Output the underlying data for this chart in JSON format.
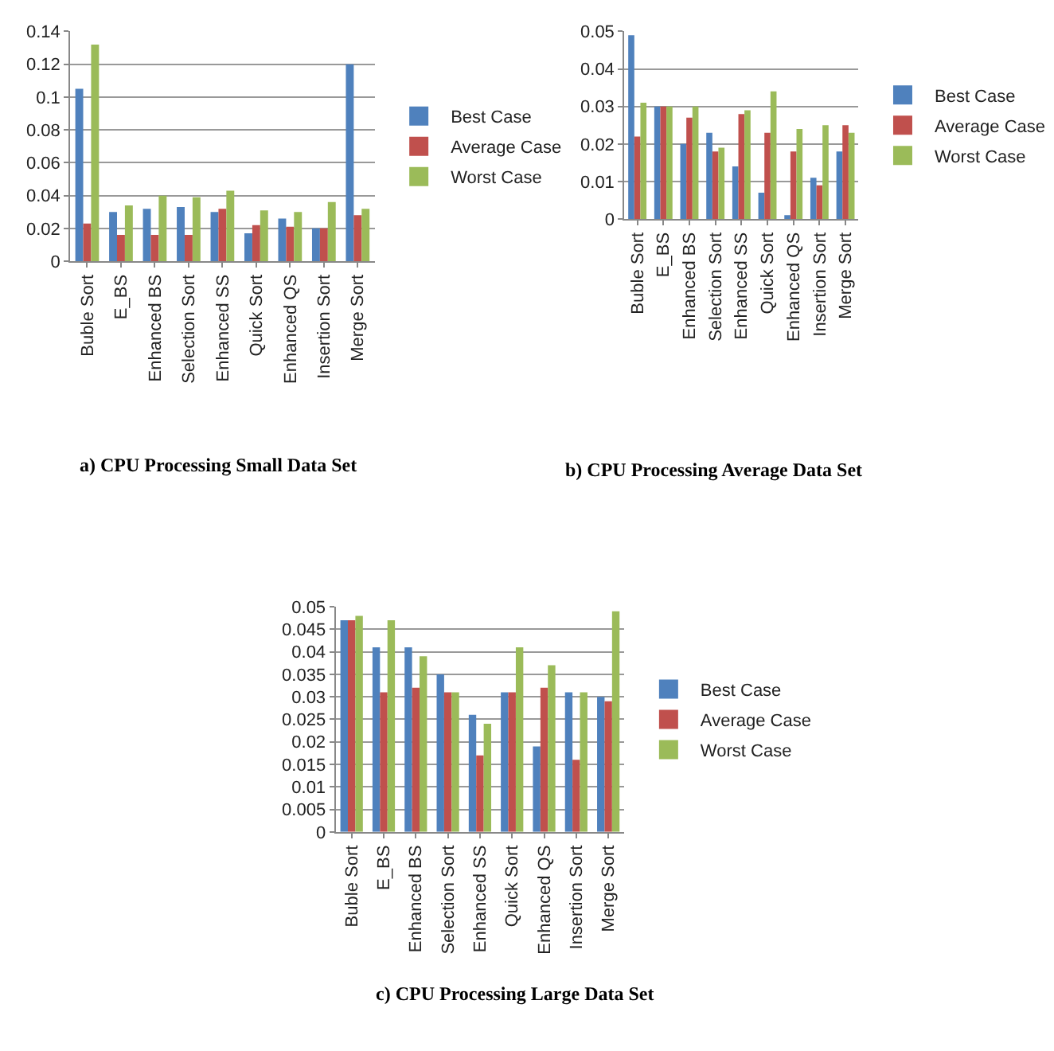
{
  "chart_data": [
    {
      "type": "bar",
      "title": "a) CPU Processing Small Data Set",
      "categories": [
        "Buble Sort",
        "E_BS",
        "Enhanced BS",
        "Selection Sort",
        "Enhanced SS",
        "Quick Sort",
        "Enhanced QS",
        "Insertion Sort",
        "Merge Sort"
      ],
      "ylim": [
        0,
        0.14
      ],
      "yticks": [
        0,
        0.02,
        0.04,
        0.06,
        0.08,
        0.1,
        0.12,
        0.14
      ],
      "grid": "y",
      "legend": "right",
      "series": [
        {
          "name": "Best Case",
          "color": "#4f81bd",
          "values": [
            0.105,
            0.03,
            0.032,
            0.033,
            0.03,
            0.017,
            0.026,
            0.02,
            0.12
          ]
        },
        {
          "name": "Average Case",
          "color": "#c0504d",
          "values": [
            0.023,
            0.016,
            0.016,
            0.016,
            0.032,
            0.022,
            0.021,
            0.02,
            0.028
          ]
        },
        {
          "name": "Worst Case",
          "color": "#9bbb59",
          "values": [
            0.132,
            0.034,
            0.04,
            0.039,
            0.043,
            0.031,
            0.03,
            0.036,
            0.032
          ]
        }
      ]
    },
    {
      "type": "bar",
      "title": "b) CPU Processing Average Data Set",
      "categories": [
        "Buble Sort",
        "E_BS",
        "Enhanced BS",
        "Selection Sort",
        "Enhanced SS",
        "Quick Sort",
        "Enhanced QS",
        "Insertion Sort",
        "Merge Sort"
      ],
      "ylim": [
        0,
        0.05
      ],
      "yticks": [
        0,
        0.01,
        0.02,
        0.03,
        0.04,
        0.05
      ],
      "grid": "y",
      "legend": "right",
      "series": [
        {
          "name": "Best Case",
          "color": "#4f81bd",
          "values": [
            0.049,
            0.03,
            0.02,
            0.023,
            0.014,
            0.007,
            0.001,
            0.011,
            0.018
          ]
        },
        {
          "name": "Average Case",
          "color": "#c0504d",
          "values": [
            0.022,
            0.03,
            0.027,
            0.018,
            0.028,
            0.023,
            0.018,
            0.009,
            0.025
          ]
        },
        {
          "name": "Worst Case",
          "color": "#9bbb59",
          "values": [
            0.031,
            0.03,
            0.03,
            0.019,
            0.029,
            0.034,
            0.024,
            0.025,
            0.023
          ]
        }
      ]
    },
    {
      "type": "bar",
      "title": "c) CPU Processing Large Data Set",
      "categories": [
        "Buble Sort",
        "E_BS",
        "Enhanced BS",
        "Selection Sort",
        "Enhanced SS",
        "Quick Sort",
        "Enhanced QS",
        "Insertion Sort",
        "Merge Sort"
      ],
      "ylim": [
        0,
        0.05
      ],
      "yticks": [
        0,
        0.005,
        0.01,
        0.015,
        0.02,
        0.025,
        0.03,
        0.035,
        0.04,
        0.045,
        0.05
      ],
      "grid": "y",
      "legend": "right",
      "series": [
        {
          "name": "Best Case",
          "color": "#4f81bd",
          "values": [
            0.047,
            0.041,
            0.041,
            0.035,
            0.026,
            0.031,
            0.019,
            0.031,
            0.03
          ]
        },
        {
          "name": "Average Case",
          "color": "#c0504d",
          "values": [
            0.047,
            0.031,
            0.032,
            0.031,
            0.017,
            0.031,
            0.032,
            0.016,
            0.029
          ]
        },
        {
          "name": "Worst Case",
          "color": "#9bbb59",
          "values": [
            0.048,
            0.047,
            0.039,
            0.031,
            0.024,
            0.041,
            0.037,
            0.031,
            0.049
          ]
        }
      ]
    }
  ]
}
